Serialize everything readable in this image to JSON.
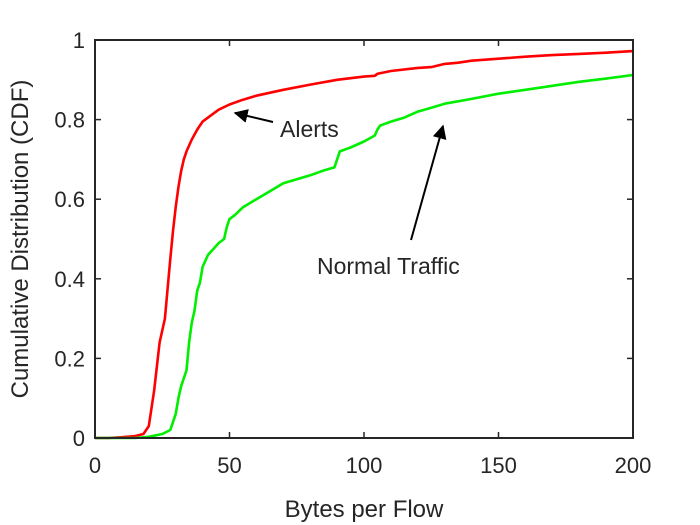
{
  "chart_data": {
    "type": "line",
    "title": "",
    "xlabel": "Bytes per Flow",
    "ylabel": "Cumulative Distribution (CDF)",
    "xlim": [
      0,
      200
    ],
    "ylim": [
      0,
      1
    ],
    "xticks": [
      0,
      50,
      100,
      150,
      200
    ],
    "xtick_labels": [
      "0",
      "50",
      "100",
      "150",
      "200"
    ],
    "yticks": [
      0,
      0.2,
      0.4,
      0.6,
      0.8,
      1
    ],
    "ytick_labels": [
      "0",
      "0.2",
      "0.4",
      "0.6",
      "0.8",
      "1"
    ],
    "grid": false,
    "series": [
      {
        "name": "Alerts",
        "color": "#ff0000",
        "x": [
          0,
          5,
          10,
          15,
          18,
          20,
          22,
          24,
          26,
          28,
          29,
          30,
          31,
          32,
          33,
          34,
          36,
          38,
          40,
          43,
          46,
          50,
          55,
          60,
          70,
          80,
          90,
          100,
          104,
          105,
          110,
          120,
          125,
          130,
          135,
          140,
          150,
          160,
          170,
          180,
          190,
          200
        ],
        "y": [
          0,
          0,
          0.002,
          0.005,
          0.01,
          0.03,
          0.12,
          0.24,
          0.3,
          0.45,
          0.52,
          0.58,
          0.63,
          0.67,
          0.7,
          0.72,
          0.75,
          0.775,
          0.795,
          0.81,
          0.825,
          0.838,
          0.85,
          0.86,
          0.875,
          0.888,
          0.9,
          0.908,
          0.91,
          0.915,
          0.922,
          0.93,
          0.932,
          0.94,
          0.943,
          0.948,
          0.953,
          0.958,
          0.962,
          0.965,
          0.968,
          0.972
        ]
      },
      {
        "name": "Normal Traffic",
        "color": "#00ee00",
        "x": [
          0,
          10,
          15,
          20,
          25,
          28,
          29,
          30,
          31,
          32,
          33,
          34,
          35,
          36,
          37,
          38,
          39,
          40,
          42,
          44,
          46,
          48,
          49,
          50,
          52,
          55,
          60,
          65,
          70,
          75,
          80,
          85,
          89,
          90,
          91,
          95,
          100,
          104,
          105,
          106,
          110,
          115,
          120,
          125,
          130,
          140,
          150,
          160,
          170,
          180,
          190,
          200
        ],
        "y": [
          0,
          0,
          0,
          0.003,
          0.01,
          0.02,
          0.04,
          0.06,
          0.1,
          0.13,
          0.15,
          0.17,
          0.24,
          0.29,
          0.32,
          0.37,
          0.39,
          0.43,
          0.46,
          0.475,
          0.49,
          0.5,
          0.53,
          0.55,
          0.56,
          0.58,
          0.6,
          0.62,
          0.64,
          0.65,
          0.66,
          0.672,
          0.68,
          0.7,
          0.72,
          0.73,
          0.745,
          0.76,
          0.775,
          0.785,
          0.795,
          0.805,
          0.82,
          0.83,
          0.84,
          0.852,
          0.865,
          0.875,
          0.885,
          0.895,
          0.903,
          0.912
        ]
      }
    ],
    "annotations": [
      {
        "text": "Alerts",
        "arrow_to": [
          50,
          0.82
        ]
      },
      {
        "text": "Normal Traffic",
        "arrow_to": [
          130,
          0.79
        ]
      }
    ]
  }
}
